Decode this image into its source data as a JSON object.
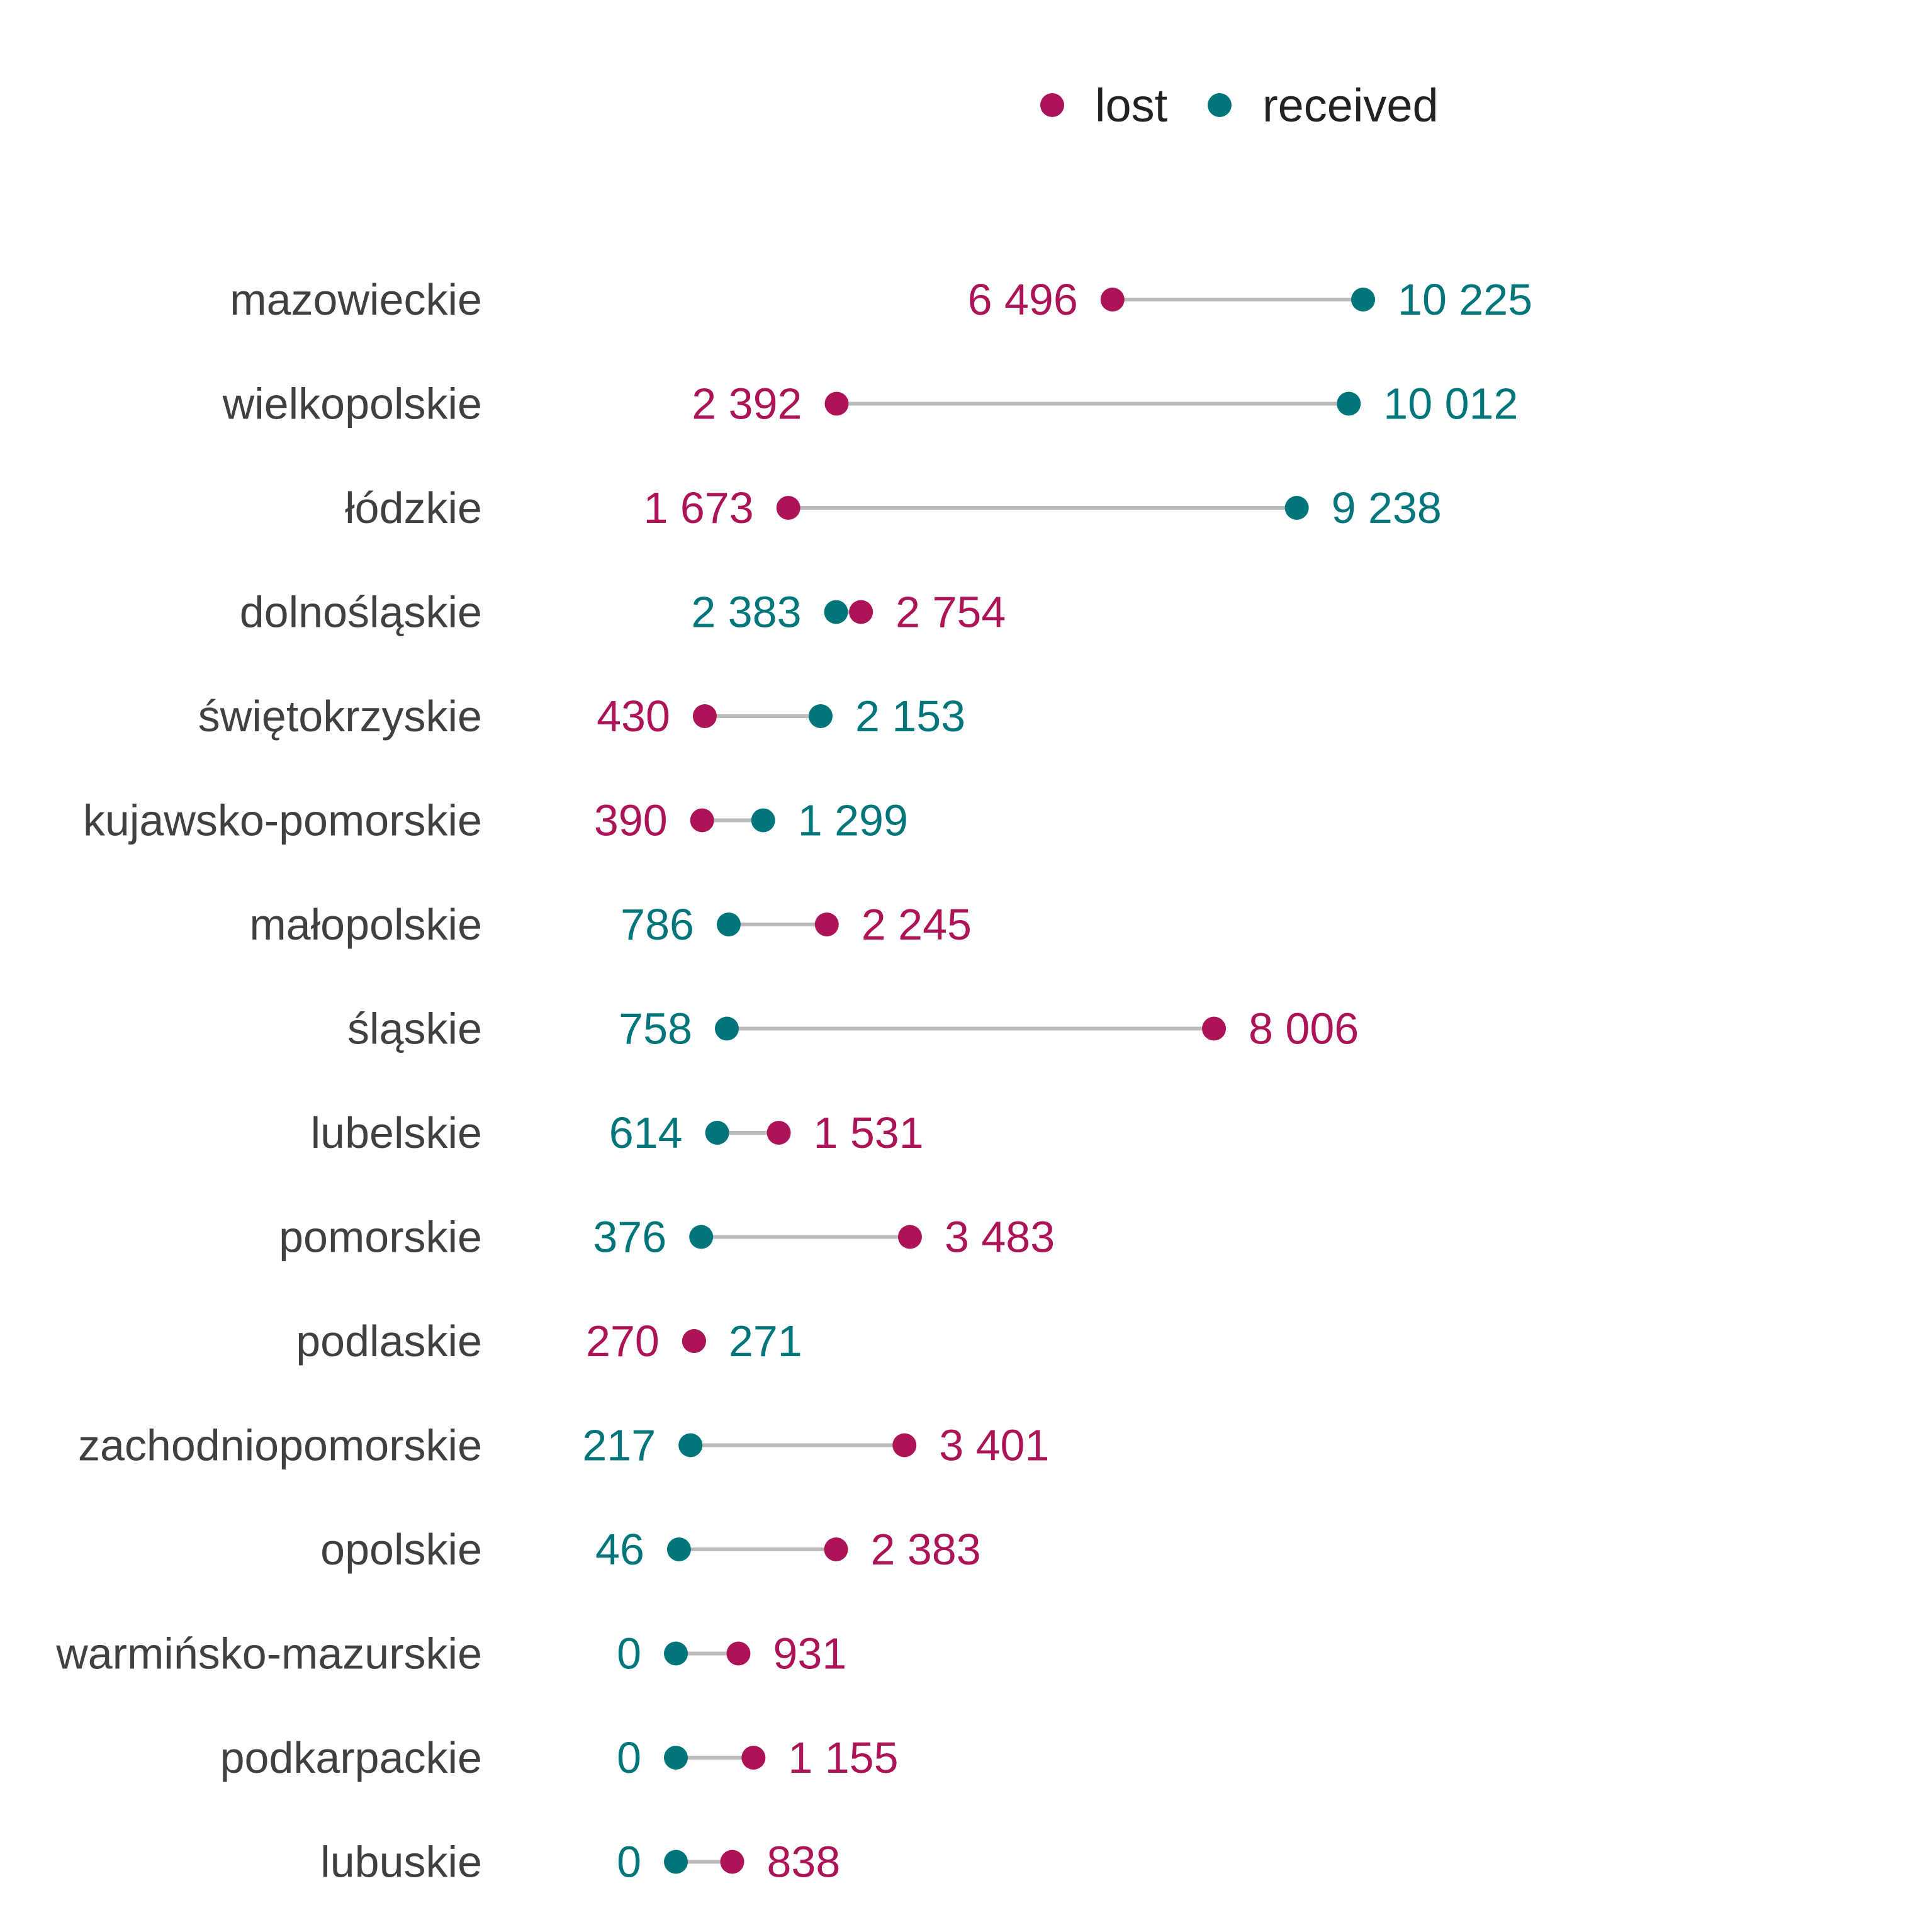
{
  "chart_data": {
    "type": "dumbbell",
    "title": "",
    "xlabel": "",
    "ylabel": "",
    "grid": false,
    "legend_position": "top-center",
    "xlim": [
      0,
      10225
    ],
    "colors": {
      "lost": "#AD1457",
      "received": "#00767A",
      "connector": "#BBBBBB"
    },
    "series": [
      {
        "key": "lost",
        "name": "lost"
      },
      {
        "key": "received",
        "name": "received"
      }
    ],
    "categories": [
      "mazowieckie",
      "wielkopolskie",
      "łódzkie",
      "dolnośląskie",
      "świętokrzyskie",
      "kujawsko-pomorskie",
      "małopolskie",
      "śląskie",
      "lubelskie",
      "pomorskie",
      "podlaskie",
      "zachodniopomorskie",
      "opolskie",
      "warmińsko-mazurskie",
      "podkarpackie",
      "lubuskie"
    ],
    "lost": [
      6496,
      2392,
      1673,
      2754,
      430,
      390,
      2245,
      8006,
      1531,
      3483,
      270,
      3401,
      2383,
      931,
      1155,
      838
    ],
    "received": [
      10225,
      10012,
      9238,
      2383,
      2153,
      1299,
      786,
      758,
      614,
      376,
      271,
      217,
      46,
      0,
      0,
      0
    ],
    "lost_labels": [
      "6 496",
      "2 392",
      "1 673",
      "2 754",
      "430",
      "390",
      "2 245",
      "8 006",
      "1 531",
      "3 483",
      "270",
      "3 401",
      "2 383",
      "931",
      "1 155",
      "838"
    ],
    "received_labels": [
      "10 225",
      "10 012",
      "9 238",
      "2 383",
      "2 153",
      "1 299",
      "786",
      "758",
      "614",
      "376",
      "271",
      "217",
      "46",
      "0",
      "0",
      "0"
    ]
  }
}
